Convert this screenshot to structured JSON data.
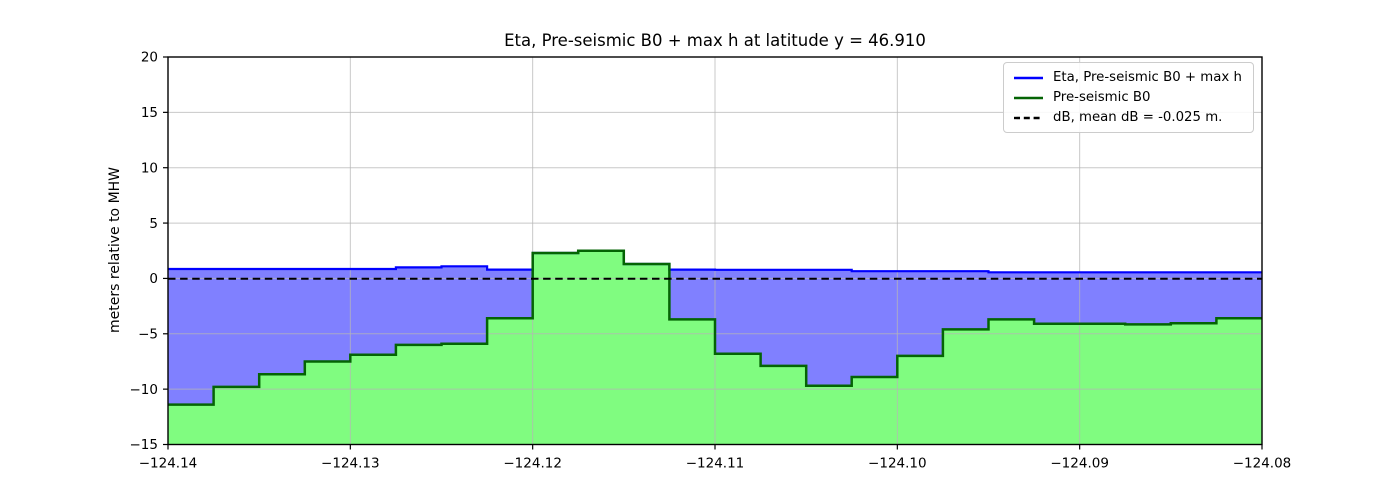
{
  "chart_data": {
    "type": "area",
    "title": "Eta, Pre-seismic B0 + max h at latitude y = 46.910",
    "xlabel": "",
    "ylabel": "meters relative to MHW",
    "xlim": [
      -124.14,
      -124.08
    ],
    "ylim": [
      -15,
      20
    ],
    "x_ticks": [
      -124.14,
      -124.13,
      -124.12,
      -124.11,
      -124.1,
      -124.09,
      -124.08
    ],
    "x_tick_labels": [
      "−124.14",
      "−124.13",
      "−124.12",
      "−124.11",
      "−124.10",
      "−124.09",
      "−124.08"
    ],
    "y_ticks": [
      -15,
      -10,
      -5,
      0,
      5,
      10,
      15,
      20
    ],
    "y_tick_labels": [
      "−15",
      "−10",
      "−5",
      "0",
      "5",
      "10",
      "15",
      "20"
    ],
    "grid": true,
    "legend_position": "upper right",
    "cell_edges_lon": [
      -124.14,
      -124.1375,
      -124.135,
      -124.1325,
      -124.13,
      -124.1275,
      -124.125,
      -124.1225,
      -124.12,
      -124.1175,
      -124.115,
      -124.1125,
      -124.11,
      -124.1075,
      -124.105,
      -124.1025,
      -124.1,
      -124.0975,
      -124.095,
      -124.0925,
      -124.09,
      -124.0875,
      -124.085,
      -124.0825,
      -124.08
    ],
    "series": [
      {
        "name": "Eta, Pre-seismic B0 + max h",
        "type": "step",
        "color": "#0000ff",
        "fill_color": "#8080ff",
        "fill_to": "b0",
        "values": [
          0.85,
          0.85,
          0.85,
          0.85,
          0.85,
          1.0,
          1.1,
          0.8,
          2.3,
          2.5,
          1.3,
          0.8,
          0.78,
          0.78,
          0.78,
          0.65,
          0.65,
          0.65,
          0.55,
          0.55,
          0.55,
          0.55,
          0.55,
          0.55
        ]
      },
      {
        "name": "Pre-seismic B0",
        "type": "step",
        "color": "#046404",
        "fill_color": "#80fc80",
        "fill_to": -15,
        "values": [
          -11.4,
          -9.8,
          -8.65,
          -7.5,
          -6.9,
          -6.0,
          -5.9,
          -3.6,
          2.3,
          2.5,
          1.3,
          -3.7,
          -6.8,
          -7.9,
          -9.7,
          -8.9,
          -7.0,
          -4.6,
          -3.7,
          -4.1,
          -4.1,
          -4.15,
          -4.05,
          -3.6
        ]
      },
      {
        "name": "dB, mean dB = -0.025 m.",
        "type": "hline",
        "color": "#000000",
        "dashed": true,
        "value": -0.025
      }
    ]
  },
  "colors": {
    "background": "#ffffff",
    "axes": "#000000",
    "grid": "#b5b5b5",
    "tick_text": "#000000"
  }
}
